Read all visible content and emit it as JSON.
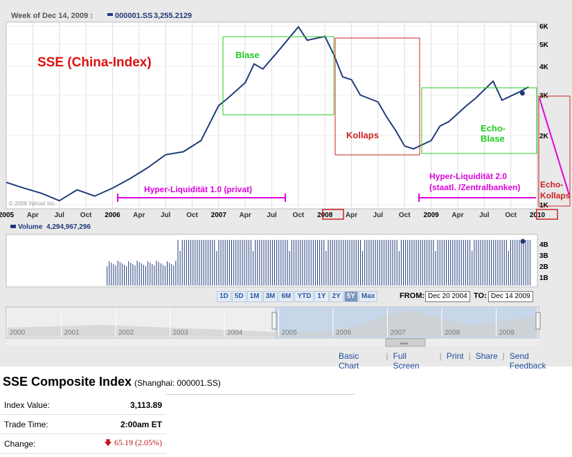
{
  "header": {
    "week_label": "Week of Dec 14, 2009 :",
    "series_symbol": "000001.SS",
    "series_value": "3,255.2129"
  },
  "annotations": {
    "title": "SSE (China-Index)",
    "blase": "Blase",
    "kollaps": "Kollaps",
    "echo_blase_1": "Echo-",
    "echo_blase_2": "Blase",
    "liquidity_1": "Hyper-Liquidität 1.0 (privat)",
    "liquidity_2a": "Hyper-Liquidität 2.0",
    "liquidity_2b": "(staatl. /Zentralbanken)",
    "echo_kollaps_1": "Echo-",
    "echo_kollaps_2": "Kollaps",
    "copyright": "© 2008 Yahoo! Inc."
  },
  "volume_header": {
    "label": "Volume",
    "value": "4,294,967,296"
  },
  "range_buttons": [
    "1D",
    "5D",
    "1M",
    "3M",
    "6M",
    "YTD",
    "1Y",
    "2Y",
    "5Y",
    "Max"
  ],
  "active_range": "5Y",
  "date_range": {
    "from_label": "FROM:",
    "from_value": "Dec 20 2004",
    "to_label": "TO:",
    "to_value": "Dec 14 2009"
  },
  "overview_years": [
    "2000",
    "2001",
    "2002",
    "2003",
    "2004",
    "2005",
    "2006",
    "2007",
    "2008",
    "2009"
  ],
  "links": [
    "Basic Chart",
    "Full Screen",
    "Print",
    "Share",
    "Send Feedback"
  ],
  "summary": {
    "title": "SSE Composite Index",
    "exchange": "(Shanghai: 000001.SS)",
    "rows": [
      {
        "label": "Index Value:",
        "value": "3,113.89"
      },
      {
        "label": "Trade Time:",
        "value": "2:00am ET"
      },
      {
        "label": "Change:",
        "value": "65.19 (2.05%)"
      }
    ]
  },
  "colors": {
    "line": "#1f3a7a",
    "grid": "#cccccc",
    "green_box": "#22cc22",
    "red_box": "#cc2222",
    "magenta": "#dd00dd",
    "title_red": "#dd1111"
  },
  "chart_data": {
    "type": "line",
    "series_name": "000001.SS",
    "x_tick_labels": [
      "2005",
      "Apr",
      "Jul",
      "Oct",
      "2006",
      "Apr",
      "Jul",
      "Oct",
      "2007",
      "Apr",
      "Jul",
      "Oct",
      "2008",
      "Apr",
      "Jul",
      "Oct",
      "2009",
      "Apr",
      "Jul",
      "Oct",
      "2010"
    ],
    "y_tick_labels": [
      "6K",
      "5K",
      "4K",
      "3K",
      "2K",
      "1K"
    ],
    "y_scale": "log",
    "x": [
      "2005-01",
      "2005-03",
      "2005-05",
      "2005-07",
      "2005-09",
      "2005-11",
      "2006-01",
      "2006-03",
      "2006-05",
      "2006-07",
      "2006-09",
      "2006-11",
      "2007-01",
      "2007-02",
      "2007-04",
      "2007-05",
      "2007-06",
      "2007-08",
      "2007-10",
      "2007-11",
      "2008-01",
      "2008-02",
      "2008-03",
      "2008-04",
      "2008-05",
      "2008-07",
      "2008-08",
      "2008-09",
      "2008-10",
      "2008-11",
      "2009-01",
      "2009-02",
      "2009-03",
      "2009-05",
      "2009-06",
      "2009-08",
      "2009-09",
      "2009-11",
      "2009-12"
    ],
    "values": [
      1250,
      1180,
      1120,
      1040,
      1160,
      1090,
      1180,
      1300,
      1450,
      1650,
      1700,
      1900,
      2700,
      2900,
      3400,
      4100,
      3900,
      4800,
      5950,
      5200,
      5400,
      4500,
      3600,
      3500,
      3000,
      2800,
      2400,
      2100,
      1800,
      1750,
      1900,
      2200,
      2300,
      2700,
      2900,
      3450,
      2850,
      3100,
      3255
    ],
    "volume_labels": [
      "4B",
      "3B",
      "2B",
      "1B"
    ],
    "volume_max": 4294967296,
    "grid": true
  }
}
